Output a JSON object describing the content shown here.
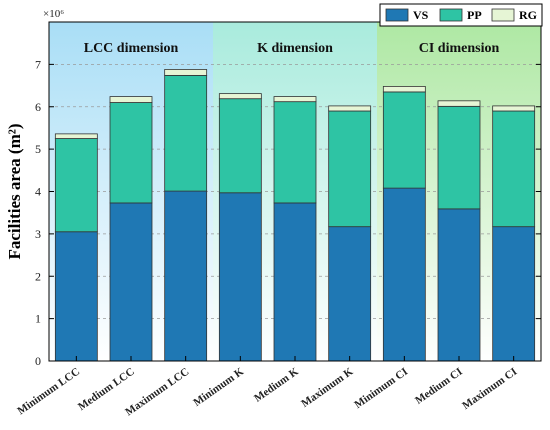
{
  "chart_data": {
    "type": "bar",
    "stacked": true,
    "categories": [
      "Minimum LCC",
      "Medium LCC",
      "Maximum LCC",
      "Minimum  K",
      "Medium K",
      "Maximum K",
      "Minimum CI",
      "Medium CI",
      "Maximum CI"
    ],
    "series": [
      {
        "name": "VS",
        "color": "#1f78b4",
        "values": [
          3.05,
          3.73,
          4.01,
          3.97,
          3.73,
          3.17,
          4.08,
          3.59,
          3.17
        ]
      },
      {
        "name": "PP",
        "color": "#2ec4a4",
        "values": [
          2.2,
          2.37,
          2.73,
          2.22,
          2.39,
          2.73,
          2.27,
          2.42,
          2.73
        ]
      },
      {
        "name": "RG",
        "color": "#e6f5d5",
        "values": [
          0.11,
          0.14,
          0.14,
          0.12,
          0.12,
          0.12,
          0.13,
          0.13,
          0.12
        ]
      }
    ],
    "ylabel": "Facilities area (m²)",
    "yexponent": "×10⁶",
    "ylim": [
      0,
      8
    ],
    "yticks": [
      "0",
      "1",
      "2",
      "3",
      "4",
      "5",
      "6",
      "7"
    ],
    "grid": "horizontal dashed",
    "legend_position": "top-right",
    "groups": [
      {
        "label": "LCC dimension",
        "color": "#a9def6"
      },
      {
        "label": "K dimension",
        "color": "#a9ebdd"
      },
      {
        "label": "CI dimension",
        "color": "#aee8a3"
      }
    ]
  }
}
